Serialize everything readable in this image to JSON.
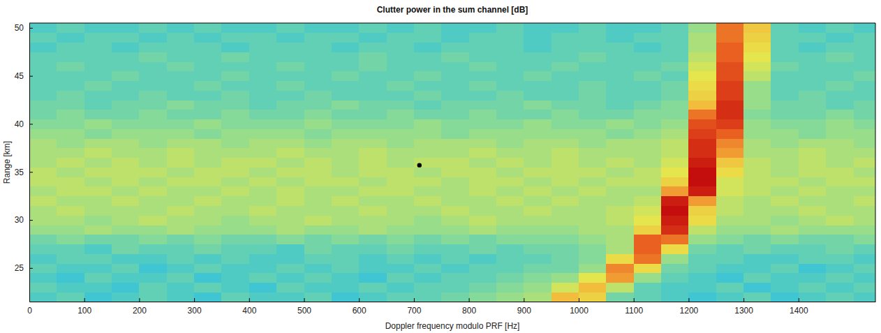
{
  "chart_data": {
    "type": "heatmap",
    "title": "Clutter power in the sum channel [dB]",
    "x_label": "Doppler frequency modulo PRF [Hz]",
    "y_label": "Range [km]",
    "xlim": [
      0,
      1540
    ],
    "ylim": [
      21.5,
      50.5
    ],
    "xticks": [
      0,
      100,
      200,
      300,
      400,
      500,
      600,
      700,
      800,
      900,
      1000,
      1100,
      1200,
      1300,
      1400
    ],
    "yticks": [
      25,
      30,
      35,
      40,
      45,
      50
    ],
    "grid": false,
    "x": [
      25,
      75,
      125,
      175,
      225,
      275,
      325,
      375,
      425,
      475,
      525,
      575,
      625,
      675,
      725,
      775,
      825,
      875,
      925,
      975,
      1025,
      1075,
      1125,
      1175,
      1225,
      1275,
      1325,
      1375,
      1425,
      1475,
      1525
    ],
    "y": [
      22,
      23,
      24,
      25,
      26,
      27,
      28,
      29,
      30,
      31,
      32,
      33,
      34,
      35,
      36,
      37,
      38,
      39,
      40,
      41,
      42,
      43,
      44,
      45,
      46,
      47,
      48,
      49,
      50
    ],
    "z": [
      [
        8,
        9,
        7,
        8,
        9,
        8,
        7,
        9,
        8,
        8,
        9,
        7,
        8,
        9,
        9,
        10,
        11,
        12,
        13,
        20,
        18,
        10,
        9,
        8,
        7,
        8,
        9,
        7,
        8,
        9,
        8
      ],
      [
        9,
        8,
        8,
        7,
        9,
        8,
        9,
        8,
        7,
        9,
        8,
        8,
        9,
        8,
        9,
        9,
        10,
        11,
        12,
        15,
        20,
        14,
        9,
        8,
        8,
        9,
        7,
        8,
        9,
        8,
        9
      ],
      [
        8,
        7,
        9,
        8,
        8,
        9,
        7,
        8,
        9,
        8,
        9,
        8,
        7,
        9,
        8,
        9,
        9,
        10,
        11,
        12,
        16,
        22,
        12,
        9,
        8,
        7,
        9,
        8,
        8,
        9,
        8
      ],
      [
        9,
        8,
        8,
        9,
        7,
        8,
        9,
        8,
        8,
        9,
        8,
        9,
        8,
        8,
        9,
        8,
        9,
        9,
        10,
        10,
        12,
        23,
        17,
        10,
        9,
        8,
        8,
        9,
        7,
        8,
        9
      ],
      [
        8,
        9,
        9,
        8,
        8,
        9,
        8,
        9,
        8,
        8,
        9,
        9,
        8,
        9,
        8,
        9,
        8,
        9,
        9,
        10,
        11,
        17,
        24,
        12,
        9,
        9,
        8,
        8,
        9,
        9,
        8
      ],
      [
        9,
        9,
        8,
        10,
        9,
        9,
        10,
        9,
        9,
        8,
        10,
        9,
        9,
        10,
        9,
        9,
        10,
        9,
        10,
        10,
        11,
        13,
        25,
        17,
        10,
        9,
        10,
        9,
        9,
        10,
        9
      ],
      [
        10,
        11,
        10,
        10,
        11,
        10,
        11,
        10,
        10,
        11,
        10,
        11,
        10,
        11,
        10,
        11,
        10,
        11,
        11,
        11,
        12,
        13,
        25,
        24,
        12,
        11,
        10,
        11,
        10,
        10,
        11
      ],
      [
        12,
        12,
        13,
        12,
        12,
        13,
        12,
        12,
        12,
        13,
        12,
        12,
        13,
        12,
        12,
        12,
        13,
        12,
        12,
        12,
        13,
        13,
        18,
        28,
        14,
        12,
        12,
        13,
        12,
        12,
        12
      ],
      [
        13,
        13,
        12,
        13,
        14,
        13,
        13,
        12,
        13,
        13,
        14,
        13,
        13,
        13,
        12,
        13,
        14,
        13,
        13,
        13,
        13,
        14,
        16,
        29,
        17,
        13,
        13,
        12,
        13,
        14,
        13
      ],
      [
        13,
        14,
        13,
        13,
        13,
        14,
        13,
        13,
        14,
        13,
        13,
        13,
        14,
        13,
        13,
        14,
        13,
        13,
        14,
        13,
        13,
        14,
        15,
        30,
        18,
        14,
        13,
        13,
        14,
        13,
        13
      ],
      [
        14,
        13,
        13,
        14,
        13,
        13,
        14,
        13,
        13,
        14,
        13,
        14,
        13,
        13,
        14,
        13,
        13,
        14,
        13,
        14,
        13,
        13,
        14,
        29,
        22,
        14,
        13,
        14,
        13,
        13,
        14
      ],
      [
        13,
        14,
        14,
        13,
        14,
        13,
        13,
        14,
        13,
        14,
        13,
        13,
        14,
        14,
        13,
        13,
        14,
        13,
        14,
        13,
        14,
        13,
        13,
        22,
        29,
        15,
        14,
        13,
        14,
        13,
        13
      ],
      [
        14,
        14,
        13,
        14,
        13,
        14,
        14,
        13,
        14,
        13,
        14,
        14,
        13,
        14,
        14,
        13,
        14,
        14,
        13,
        14,
        13,
        14,
        14,
        18,
        30,
        15,
        14,
        14,
        13,
        14,
        14
      ],
      [
        14,
        13,
        14,
        14,
        14,
        13,
        14,
        14,
        13,
        14,
        14,
        13,
        14,
        14,
        13,
        14,
        14,
        13,
        14,
        14,
        14,
        13,
        14,
        16,
        30,
        17,
        14,
        13,
        14,
        14,
        13
      ],
      [
        13,
        14,
        13,
        14,
        13,
        14,
        13,
        14,
        14,
        13,
        14,
        13,
        14,
        13,
        14,
        14,
        13,
        14,
        13,
        14,
        13,
        14,
        13,
        15,
        29,
        19,
        14,
        13,
        14,
        13,
        14
      ],
      [
        13,
        13,
        14,
        13,
        13,
        14,
        13,
        13,
        13,
        14,
        13,
        13,
        14,
        13,
        13,
        13,
        14,
        13,
        13,
        14,
        13,
        13,
        13,
        14,
        28,
        22,
        13,
        13,
        14,
        13,
        13
      ],
      [
        13,
        12,
        13,
        13,
        12,
        13,
        13,
        12,
        13,
        13,
        12,
        13,
        13,
        12,
        13,
        13,
        13,
        12,
        13,
        13,
        12,
        13,
        13,
        14,
        28,
        23,
        13,
        12,
        13,
        13,
        12
      ],
      [
        12,
        12,
        11,
        12,
        12,
        12,
        11,
        12,
        12,
        12,
        11,
        12,
        12,
        12,
        12,
        11,
        12,
        12,
        12,
        12,
        12,
        11,
        12,
        13,
        27,
        25,
        12,
        12,
        11,
        12,
        12
      ],
      [
        11,
        11,
        12,
        11,
        11,
        11,
        12,
        11,
        11,
        11,
        12,
        11,
        11,
        11,
        12,
        11,
        11,
        11,
        12,
        11,
        11,
        12,
        11,
        12,
        26,
        27,
        12,
        11,
        11,
        12,
        11
      ],
      [
        10,
        11,
        10,
        10,
        11,
        10,
        10,
        11,
        10,
        10,
        11,
        10,
        10,
        11,
        10,
        10,
        11,
        10,
        10,
        11,
        10,
        10,
        11,
        11,
        24,
        28,
        11,
        10,
        10,
        11,
        10
      ],
      [
        10,
        10,
        9,
        10,
        10,
        11,
        10,
        10,
        9,
        10,
        10,
        11,
        10,
        10,
        9,
        10,
        10,
        10,
        11,
        10,
        10,
        9,
        10,
        11,
        20,
        28,
        12,
        10,
        10,
        9,
        10
      ],
      [
        9,
        10,
        9,
        9,
        10,
        9,
        9,
        10,
        9,
        9,
        10,
        9,
        9,
        9,
        10,
        9,
        9,
        10,
        9,
        9,
        10,
        9,
        9,
        10,
        18,
        27,
        12,
        9,
        10,
        9,
        9
      ],
      [
        9,
        9,
        10,
        9,
        9,
        9,
        10,
        9,
        9,
        10,
        9,
        9,
        9,
        10,
        9,
        9,
        10,
        9,
        9,
        9,
        10,
        9,
        9,
        10,
        17,
        27,
        12,
        9,
        9,
        10,
        9
      ],
      [
        9,
        9,
        9,
        10,
        9,
        9,
        9,
        10,
        9,
        9,
        9,
        10,
        9,
        9,
        10,
        9,
        9,
        9,
        10,
        9,
        9,
        9,
        10,
        9,
        16,
        26,
        14,
        9,
        9,
        9,
        10
      ],
      [
        9,
        10,
        9,
        9,
        9,
        10,
        9,
        9,
        9,
        10,
        9,
        9,
        10,
        9,
        9,
        9,
        10,
        9,
        9,
        10,
        9,
        9,
        9,
        10,
        15,
        26,
        15,
        10,
        9,
        9,
        9
      ],
      [
        9,
        9,
        9,
        9,
        10,
        9,
        9,
        10,
        9,
        9,
        9,
        9,
        10,
        9,
        9,
        10,
        9,
        9,
        9,
        9,
        10,
        9,
        9,
        9,
        14,
        25,
        16,
        9,
        9,
        10,
        9
      ],
      [
        8,
        9,
        9,
        8,
        9,
        9,
        9,
        8,
        9,
        9,
        9,
        8,
        9,
        9,
        8,
        9,
        9,
        9,
        8,
        9,
        9,
        9,
        8,
        9,
        13,
        25,
        17,
        9,
        8,
        9,
        9
      ],
      [
        9,
        8,
        9,
        9,
        8,
        9,
        8,
        9,
        9,
        8,
        9,
        9,
        8,
        9,
        9,
        8,
        9,
        9,
        8,
        9,
        9,
        8,
        9,
        9,
        13,
        24,
        18,
        9,
        9,
        8,
        9
      ],
      [
        8,
        9,
        8,
        8,
        9,
        8,
        9,
        8,
        8,
        9,
        8,
        8,
        9,
        8,
        9,
        8,
        8,
        9,
        8,
        8,
        9,
        8,
        8,
        9,
        12,
        24,
        19,
        9,
        8,
        9,
        8
      ]
    ],
    "series": [
      {
        "type": "scatter",
        "x": [
          710
        ],
        "values": [
          35.7
        ],
        "color": "#000000",
        "marker": "circle"
      }
    ]
  }
}
